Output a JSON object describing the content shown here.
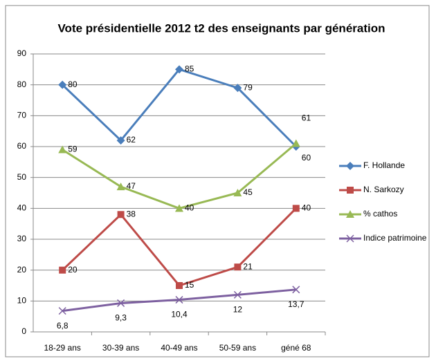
{
  "chart_data": {
    "type": "line",
    "title": "Vote présidentielle 2012 t2 des enseignants par génération",
    "categories": [
      "18-29 ans",
      "30-39 ans",
      "40-49 ans",
      "50-59 ans",
      "géné 68"
    ],
    "series": [
      {
        "name": "F. Hollande",
        "color": "#4a7ebb",
        "marker": "diamond",
        "values": [
          80,
          62,
          85,
          79,
          60
        ]
      },
      {
        "name": "N. Sarkozy",
        "color": "#be4b48",
        "marker": "square",
        "values": [
          20,
          38,
          15,
          21,
          40
        ]
      },
      {
        "name": "% cathos",
        "color": "#98b954",
        "marker": "triangle",
        "values": [
          59,
          47,
          40,
          45,
          61
        ]
      },
      {
        "name": "Indice patrimoine",
        "color": "#7d60a0",
        "marker": "x",
        "values": [
          6.8,
          9.3,
          10.4,
          12,
          13.7
        ],
        "value_labels": [
          "6,8",
          "9,3",
          "10,4",
          "12",
          "13,7"
        ]
      }
    ],
    "ylim": [
      0,
      90
    ],
    "yticks": [
      0,
      10,
      20,
      30,
      40,
      50,
      60,
      70,
      80,
      90
    ],
    "grid": true,
    "legend": "right"
  }
}
